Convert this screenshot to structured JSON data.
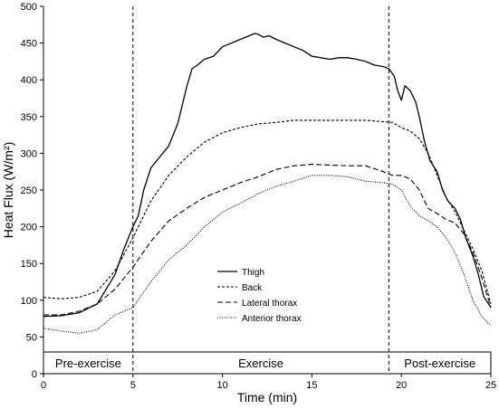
{
  "chart_data": {
    "type": "line",
    "xlabel": "Time (min)",
    "ylabel": "Heat Flux (W/m²)",
    "xlim": [
      0,
      25
    ],
    "ylim": [
      0,
      500
    ],
    "x_ticks": [
      "0",
      "5",
      "10",
      "15",
      "20",
      "25"
    ],
    "y_ticks": [
      "0",
      "50",
      "100",
      "150",
      "200",
      "250",
      "300",
      "350",
      "400",
      "450",
      "500"
    ],
    "grid": false,
    "legend_placement": "center",
    "phase_boundaries": [
      5,
      19.3
    ],
    "phases": [
      {
        "label": "Pre-exercise",
        "start": 0,
        "end": 5
      },
      {
        "label": "Exercise",
        "start": 5,
        "end": 19.3
      },
      {
        "label": "Post-exercise",
        "start": 19.3,
        "end": 25
      }
    ],
    "series": [
      {
        "name": "Thigh",
        "style": "solid",
        "x": [
          0,
          1,
          2,
          3,
          4,
          4.5,
          5,
          5.3,
          5.6,
          6,
          6.5,
          7,
          7.5,
          8,
          8.3,
          8.6,
          9,
          9.5,
          10,
          10.5,
          11,
          11.5,
          11.8,
          12,
          12.3,
          12.6,
          13,
          13.5,
          14,
          14.5,
          15,
          15.5,
          16,
          16.5,
          17,
          17.5,
          18,
          18.5,
          19,
          19.3,
          19.6,
          19.8,
          20,
          20.2,
          20.5,
          20.8,
          21,
          21.3,
          21.6,
          22,
          22.3,
          22.6,
          23,
          23.3,
          23.6,
          24,
          24.3,
          24.6,
          25
        ],
        "y": [
          78,
          79,
          83,
          95,
          135,
          170,
          200,
          215,
          250,
          280,
          295,
          310,
          340,
          390,
          415,
          420,
          428,
          432,
          445,
          450,
          455,
          460,
          463,
          462,
          458,
          460,
          455,
          450,
          445,
          440,
          432,
          430,
          428,
          430,
          430,
          428,
          425,
          420,
          418,
          415,
          405,
          385,
          372,
          392,
          385,
          370,
          350,
          315,
          290,
          275,
          250,
          235,
          225,
          210,
          185,
          160,
          135,
          105,
          90
        ]
      },
      {
        "name": "Back",
        "style": "short-dash",
        "x": [
          0,
          1,
          2,
          3,
          4,
          5,
          6,
          7,
          8,
          9,
          10,
          11,
          12,
          13,
          14,
          15,
          16,
          17,
          18,
          19,
          19.5,
          20,
          20.5,
          21,
          21.5,
          22,
          22.5,
          23,
          23.5,
          24,
          24.5,
          25
        ],
        "y": [
          104,
          102,
          104,
          112,
          140,
          185,
          235,
          270,
          295,
          315,
          328,
          335,
          340,
          342,
          345,
          345,
          345,
          345,
          345,
          343,
          342,
          335,
          330,
          320,
          300,
          270,
          240,
          220,
          195,
          170,
          140,
          95
        ]
      },
      {
        "name": "Lateral thorax",
        "style": "long-dash",
        "x": [
          0,
          1,
          2,
          3,
          4,
          5,
          6,
          7,
          8,
          9,
          10,
          11,
          12,
          13,
          14,
          15,
          16,
          17,
          18,
          19,
          19.5,
          20,
          20.5,
          21,
          21.5,
          22,
          22.5,
          23,
          23.5,
          24,
          24.5,
          25
        ],
        "y": [
          80,
          80,
          85,
          95,
          115,
          145,
          180,
          208,
          225,
          240,
          250,
          260,
          268,
          278,
          283,
          285,
          284,
          283,
          283,
          275,
          270,
          270,
          265,
          250,
          225,
          218,
          210,
          205,
          190,
          165,
          130,
          90
        ]
      },
      {
        "name": "Anterior thorax",
        "style": "dotted",
        "x": [
          0,
          1,
          2,
          3,
          4,
          5,
          6,
          7,
          8,
          9,
          10,
          11,
          12,
          13,
          14,
          15,
          16,
          17,
          18,
          19,
          19.5,
          20,
          20.5,
          21,
          21.5,
          22,
          22.5,
          23,
          23.5,
          24,
          24.5,
          25
        ],
        "y": [
          62,
          58,
          55,
          60,
          80,
          90,
          125,
          155,
          175,
          200,
          220,
          232,
          245,
          255,
          262,
          270,
          270,
          268,
          262,
          260,
          258,
          250,
          228,
          215,
          208,
          200,
          185,
          165,
          135,
          100,
          78,
          65
        ]
      }
    ]
  }
}
